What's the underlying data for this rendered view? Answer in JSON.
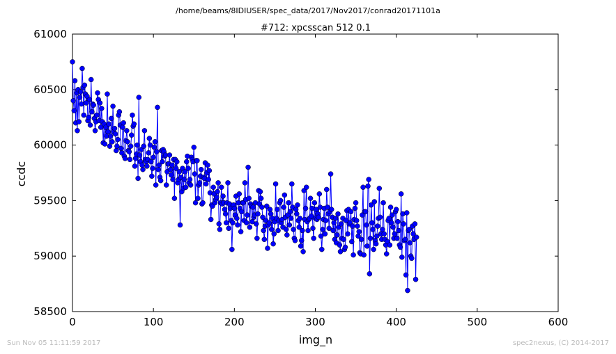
{
  "header": {
    "file_path": "/home/beams/8IDIUSER/spec_data/2017/Nov2017/conrad20171101a"
  },
  "footer": {
    "timestamp": "Sun Nov 05 11:11:59 2017",
    "credit": "spec2nexus, (C) 2014-2017"
  },
  "colors": {
    "series": "#0000ff",
    "footer_text": "#bbbbbb"
  },
  "chart_data": {
    "type": "line",
    "title": "#712: xpcsscan 512 0.1",
    "xlabel": "img_n",
    "ylabel": "ccdc",
    "xlim": [
      0,
      600
    ],
    "ylim": [
      58500,
      61000
    ],
    "xticks": [
      0,
      100,
      200,
      300,
      400,
      500,
      600
    ],
    "yticks": [
      58500,
      59000,
      59500,
      60000,
      60500,
      61000
    ],
    "grid": false,
    "legend": "none",
    "marker": "circle",
    "series": [
      {
        "x_start": 0,
        "x_step": 1,
        "y": [
          60750,
          60400,
          60310,
          60580,
          60200,
          60470,
          60130,
          60500,
          60210,
          60430,
          60480,
          60370,
          60690,
          60520,
          60270,
          60540,
          60460,
          60380,
          60440,
          60220,
          60250,
          60410,
          60180,
          60590,
          60300,
          60370,
          60360,
          60240,
          60130,
          60210,
          60270,
          60470,
          60410,
          60220,
          60380,
          60160,
          60330,
          60210,
          60020,
          60190,
          60010,
          60160,
          60080,
          60460,
          60120,
          60190,
          59990,
          60080,
          60240,
          60030,
          60350,
          60120,
          60150,
          60100,
          59950,
          59990,
          60050,
          60270,
          60300,
          60180,
          59970,
          59930,
          60160,
          60200,
          59900,
          59880,
          60040,
          60130,
          60030,
          59950,
          59940,
          59870,
          59990,
          60090,
          60270,
          60170,
          60190,
          59810,
          59880,
          59920,
          60000,
          59700,
          60430,
          59910,
          59850,
          59960,
          59820,
          59780,
          59990,
          60130,
          59870,
          59850,
          59810,
          59870,
          59930,
          60060,
          60000,
          59850,
          59720,
          59790,
          59890,
          59980,
          60030,
          59640,
          59940,
          60340,
          59780,
          59820,
          59710,
          59680,
          59950,
          59850,
          59960,
          59940,
          59900,
          59910,
          59640,
          59760,
          59830,
          59830,
          59910,
          59780,
          59730,
          59820,
          59690,
          59870,
          59520,
          59870,
          59790,
          59850,
          59660,
          59690,
          59760,
          59280,
          59710,
          59580,
          59790,
          59610,
          59690,
          59760,
          59620,
          59850,
          59900,
          59790,
          59660,
          59690,
          59640,
          59890,
          59870,
          59850,
          59980,
          59740,
          59480,
          59860,
          59860,
          59520,
          59640,
          59660,
          59720,
          59780,
          59470,
          59480,
          59710,
          59700,
          59840,
          59650,
          59750,
          59820,
          59690,
          59770,
          59570,
          59330,
          59460,
          59450,
          59620,
          59560,
          59480,
          59510,
          59530,
          59580,
          59660,
          59290,
          59240,
          59480,
          59620,
          59470,
          59540,
          59480,
          59420,
          59380,
          59300,
          59480,
          59660,
          59250,
          59470,
          59430,
          59320,
          59060,
          59300,
          59460,
          59430,
          59370,
          59540,
          59340,
          59280,
          59480,
          59560,
          59430,
          59220,
          59400,
          59480,
          59480,
          59320,
          59660,
          59510,
          59300,
          59370,
          59800,
          59520,
          59260,
          59470,
          59450,
          59310,
          59440,
          59350,
          59370,
          59480,
          59290,
          59160,
          59380,
          59590,
          59470,
          59580,
          59520,
          59440,
          59350,
          59230,
          59150,
          59270,
          59320,
          59450,
          59070,
          59280,
          59300,
          59420,
          59380,
          59240,
          59340,
          59110,
          59200,
          59310,
          59650,
          59340,
          59420,
          59230,
          59320,
          59480,
          59500,
          59300,
          59330,
          59260,
          59440,
          59550,
          59350,
          59240,
          59190,
          59370,
          59480,
          59280,
          59400,
          59340,
          59650,
          59440,
          59240,
          59160,
          59140,
          59420,
          59380,
          59460,
          59320,
          59260,
          59340,
          59090,
          59140,
          59230,
          59040,
          59590,
          59330,
          59430,
          59620,
          59310,
          59230,
          59330,
          59340,
          59520,
          59360,
          59430,
          59250,
          59160,
          59480,
          59340,
          59420,
          59330,
          59380,
          59350,
          59560,
          59440,
          59180,
          59060,
          59240,
          59330,
          59430,
          59200,
          59320,
          59600,
          59440,
          59380,
          59250,
          59400,
          59740,
          59420,
          59350,
          59230,
          59300,
          59150,
          59340,
          59120,
          59190,
          59380,
          59260,
          59100,
          59040,
          59290,
          59160,
          59340,
          59150,
          59060,
          59080,
          59320,
          59410,
          59200,
          59420,
          59290,
          59300,
          59400,
          59130,
          59270,
          59010,
          59330,
          59430,
          59480,
          59320,
          59270,
          59180,
          59220,
          59030,
          59020,
          59150,
          59370,
          59620,
          59010,
          59400,
          59400,
          59280,
          59090,
          59630,
          59690,
          58840,
          59160,
          59460,
          59300,
          59240,
          59060,
          59490,
          59140,
          59110,
          59180,
          59270,
          59340,
          59610,
          59350,
          59200,
          59150,
          59240,
          59480,
          59200,
          59150,
          59100,
          59020,
          59130,
          59320,
          59340,
          59100,
          59440,
          59300,
          59370,
          59260,
          59160,
          59200,
          59400,
          59420,
          59160,
          59310,
          59230,
          59100,
          59080,
          59560,
          58990,
          59380,
          59290,
          59140,
          59150,
          58830,
          59390,
          58690,
          59230,
          59240,
          59120,
          59000,
          58980,
          59270,
          59200,
          59150,
          59290,
          58790,
          59170
        ]
      }
    ]
  }
}
